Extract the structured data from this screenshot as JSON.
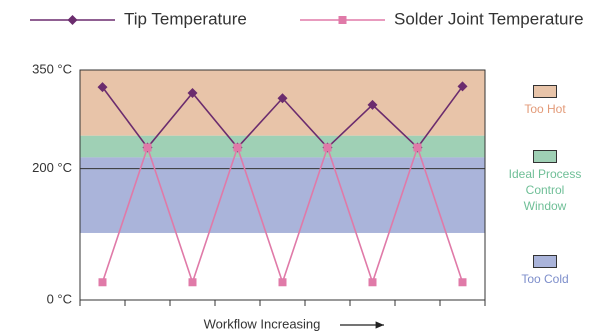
{
  "chart_data": {
    "type": "line",
    "x_label": "Workflow Increasing",
    "categories": [
      null,
      null,
      null,
      null,
      null,
      null,
      null,
      null,
      null
    ],
    "series": [
      {
        "name": "Tip Temperature",
        "color": "#6b2c6e",
        "marker": "diamond",
        "values": [
          324,
          232,
          315,
          232,
          307,
          232,
          297,
          232,
          325
        ]
      },
      {
        "name": "Solder Joint Temperature",
        "color": "#e07aa8",
        "marker": "square",
        "values": [
          27,
          232,
          27,
          232,
          27,
          232,
          27,
          232,
          27
        ]
      }
    ],
    "bands": [
      {
        "name": "Too Hot",
        "from": 250,
        "to": 350,
        "color": "#e8c4a9",
        "label_color": "#e39a78"
      },
      {
        "name": "Ideal Process Control Window",
        "from": 217,
        "to": 250,
        "color": "#9fd0b5",
        "label_color": "#6fbf97"
      },
      {
        "name": "Too Cold",
        "from": 102,
        "to": 217,
        "color": "#aab4da",
        "label_color": "#7d8ecb"
      }
    ],
    "ylim": [
      0,
      350
    ],
    "yticks": [
      {
        "value": 0,
        "label": "0 °C"
      },
      {
        "value": 200,
        "label": "200 °C"
      },
      {
        "value": 350,
        "label": "350 °C"
      }
    ],
    "grid": true
  }
}
